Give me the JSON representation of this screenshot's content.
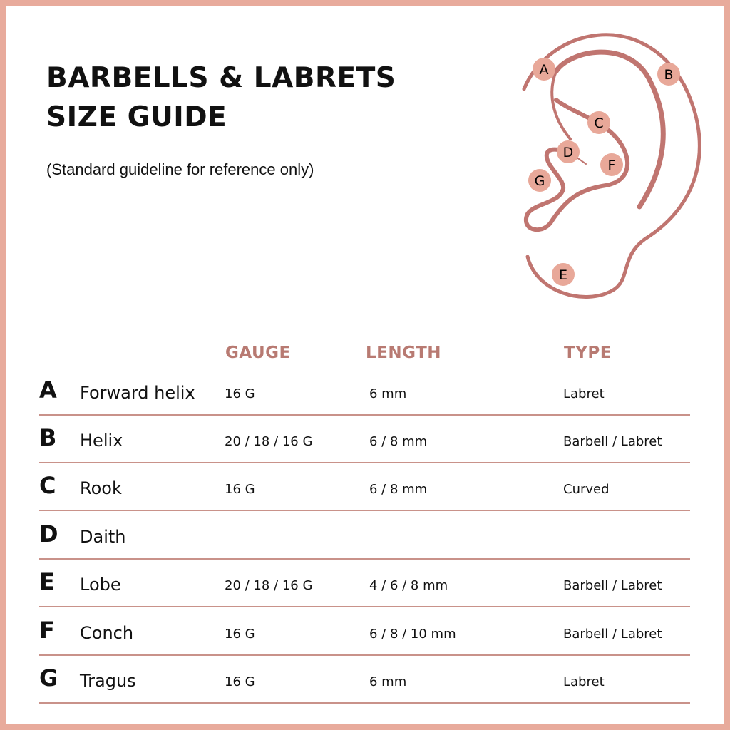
{
  "title_lines": [
    "BARBELLS & LABRETS",
    "SIZE GUIDE"
  ],
  "subtitle": "(Standard guideline for reference only)",
  "colors": {
    "border": "#e8ab9c",
    "accent": "#b87a72",
    "ear_line": "#c07570",
    "marker": "#e8a899"
  },
  "diagram_markers": [
    "A",
    "B",
    "C",
    "D",
    "E",
    "F",
    "G"
  ],
  "table": {
    "headers": [
      "GAUGE",
      "LENGTH",
      "TYPE"
    ],
    "rows": [
      {
        "letter": "A",
        "name": "Forward helix",
        "gauge": "16 G",
        "length": "6 mm",
        "type": "Labret"
      },
      {
        "letter": "B",
        "name": "Helix",
        "gauge": "20 / 18 / 16 G",
        "length": "6 / 8 mm",
        "type": "Barbell  / Labret"
      },
      {
        "letter": "C",
        "name": "Rook",
        "gauge": "16 G",
        "length": "6 / 8 mm",
        "type": "Curved"
      },
      {
        "letter": "D",
        "name": "Daith",
        "gauge": "",
        "length": "",
        "type": ""
      },
      {
        "letter": "E",
        "name": "Lobe",
        "gauge": "20 / 18 / 16 G",
        "length": "4 / 6 / 8  mm",
        "type": "Barbell  / Labret"
      },
      {
        "letter": "F",
        "name": "Conch",
        "gauge": "16 G",
        "length": "6 / 8 / 10 mm",
        "type": "Barbell  / Labret"
      },
      {
        "letter": "G",
        "name": "Tragus",
        "gauge": "16 G",
        "length": "6 mm",
        "type": "Labret"
      }
    ]
  }
}
